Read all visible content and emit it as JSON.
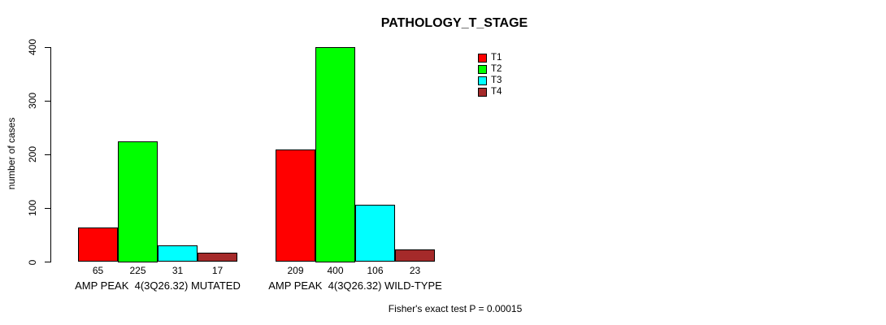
{
  "chart_data": {
    "type": "bar",
    "title": "PATHOLOGY_T_STAGE",
    "ylabel": "number of cases",
    "xlabel": "",
    "annotation": "Fisher's exact test P = 0.00015",
    "categories": [
      "AMP PEAK  4(3Q26.32) MUTATED",
      "AMP PEAK  4(3Q26.32) WILD-TYPE"
    ],
    "series": [
      {
        "name": "T1",
        "color": "#ff0000",
        "values": [
          65,
          209
        ]
      },
      {
        "name": "T2",
        "color": "#00ff00",
        "values": [
          225,
          400
        ]
      },
      {
        "name": "T3",
        "color": "#00ffff",
        "values": [
          31,
          106
        ]
      },
      {
        "name": "T4",
        "color": "#a52a2a",
        "values": [
          17,
          23
        ]
      }
    ],
    "bar_value_labels": [
      [
        "65",
        "225",
        "31",
        "17"
      ],
      [
        "209",
        "400",
        "106",
        "23"
      ]
    ],
    "ylim": [
      0,
      400
    ],
    "yticks": [
      0,
      100,
      200,
      300,
      400
    ],
    "grid": false,
    "legend_position": "top-right",
    "bar_border_color": "#000000",
    "background_color": "#ffffff"
  }
}
